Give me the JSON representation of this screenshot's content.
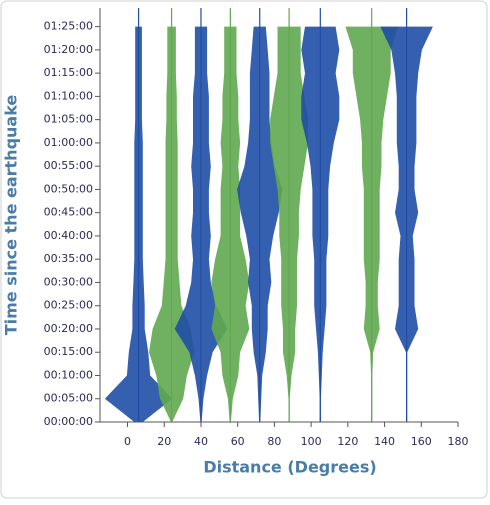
{
  "chart_data": {
    "type": "record-section",
    "xlabel": "Distance (Degrees)",
    "ylabel": "Time since the earthquake",
    "xlim": [
      -15,
      180
    ],
    "xticks": [
      0,
      20,
      40,
      60,
      80,
      100,
      120,
      140,
      160,
      180
    ],
    "ylim": [
      0,
      89
    ],
    "yticks": [
      {
        "value": 0,
        "label": "00:00:00"
      },
      {
        "value": 5,
        "label": "00:05:00"
      },
      {
        "value": 10,
        "label": "00:10:00"
      },
      {
        "value": 15,
        "label": "00:15:00"
      },
      {
        "value": 20,
        "label": "00:20:00"
      },
      {
        "value": 25,
        "label": "00:25:00"
      },
      {
        "value": 30,
        "label": "00:30:00"
      },
      {
        "value": 35,
        "label": "00:35:00"
      },
      {
        "value": 40,
        "label": "00:40:00"
      },
      {
        "value": 45,
        "label": "00:45:00"
      },
      {
        "value": 50,
        "label": "00:50:00"
      },
      {
        "value": 55,
        "label": "00:55:00"
      },
      {
        "value": 60,
        "label": "01:00:00"
      },
      {
        "value": 65,
        "label": "01:05:00"
      },
      {
        "value": 70,
        "label": "01:10:00"
      },
      {
        "value": 75,
        "label": "01:15:00"
      },
      {
        "value": 80,
        "label": "01:20:00"
      },
      {
        "value": 85,
        "label": "01:25:00"
      }
    ],
    "times": [
      0,
      5,
      10,
      15,
      20,
      25,
      30,
      35,
      40,
      45,
      50,
      55,
      60,
      65,
      70,
      75,
      80,
      85
    ],
    "series": [
      {
        "x": 6,
        "color": "#1f4ea6",
        "values": [
          2,
          18,
          6,
          5,
          3,
          3,
          2.5,
          2,
          2,
          2,
          2,
          2,
          2,
          1.5,
          1.5,
          1.5,
          1.5,
          1.5
        ]
      },
      {
        "x": 24,
        "color": "#5fa84f",
        "values": [
          0,
          6,
          8,
          12,
          10,
          5,
          4,
          3,
          3,
          3,
          3,
          3,
          3,
          2.5,
          2.5,
          2,
          2,
          2
        ]
      },
      {
        "x": 40,
        "color": "#1f4ea6",
        "values": [
          0,
          1,
          3,
          6,
          14,
          8,
          5,
          4,
          5,
          4,
          4,
          5,
          4,
          4,
          4,
          3,
          3,
          3
        ]
      },
      {
        "x": 56,
        "color": "#5fa84f",
        "values": [
          0,
          1,
          4,
          5,
          10,
          8,
          10,
          8,
          5,
          5,
          5,
          4,
          5,
          4,
          4,
          3,
          3,
          3
        ]
      },
      {
        "x": 72,
        "color": "#1f4ea6",
        "values": [
          0,
          0.5,
          1,
          3,
          4,
          4,
          6,
          5,
          7,
          10,
          12,
          8,
          6,
          5,
          5,
          5,
          4,
          3
        ]
      },
      {
        "x": 88,
        "color": "#5fa84f",
        "values": [
          0,
          0,
          1,
          3,
          3,
          4,
          4,
          4,
          5,
          5,
          6,
          8,
          10,
          10,
          8,
          6,
          6,
          6
        ]
      },
      {
        "x": 105,
        "color": "#1f4ea6",
        "values": [
          0,
          0,
          0.5,
          1,
          2,
          3,
          3,
          3,
          4,
          4,
          4,
          5,
          7,
          10,
          10,
          8,
          10,
          8
        ]
      },
      {
        "x": 133,
        "color": "#5fa84f",
        "values": [
          0,
          0,
          0,
          0.5,
          4,
          3,
          3,
          4,
          4,
          4,
          4,
          5,
          5,
          6,
          8,
          10,
          10,
          14
        ]
      },
      {
        "x": 152,
        "color": "#1f4ea6",
        "values": [
          0,
          0,
          0,
          0,
          6,
          4,
          4,
          4,
          3,
          6,
          4,
          4,
          5,
          5,
          5,
          6,
          8,
          14
        ]
      }
    ]
  }
}
